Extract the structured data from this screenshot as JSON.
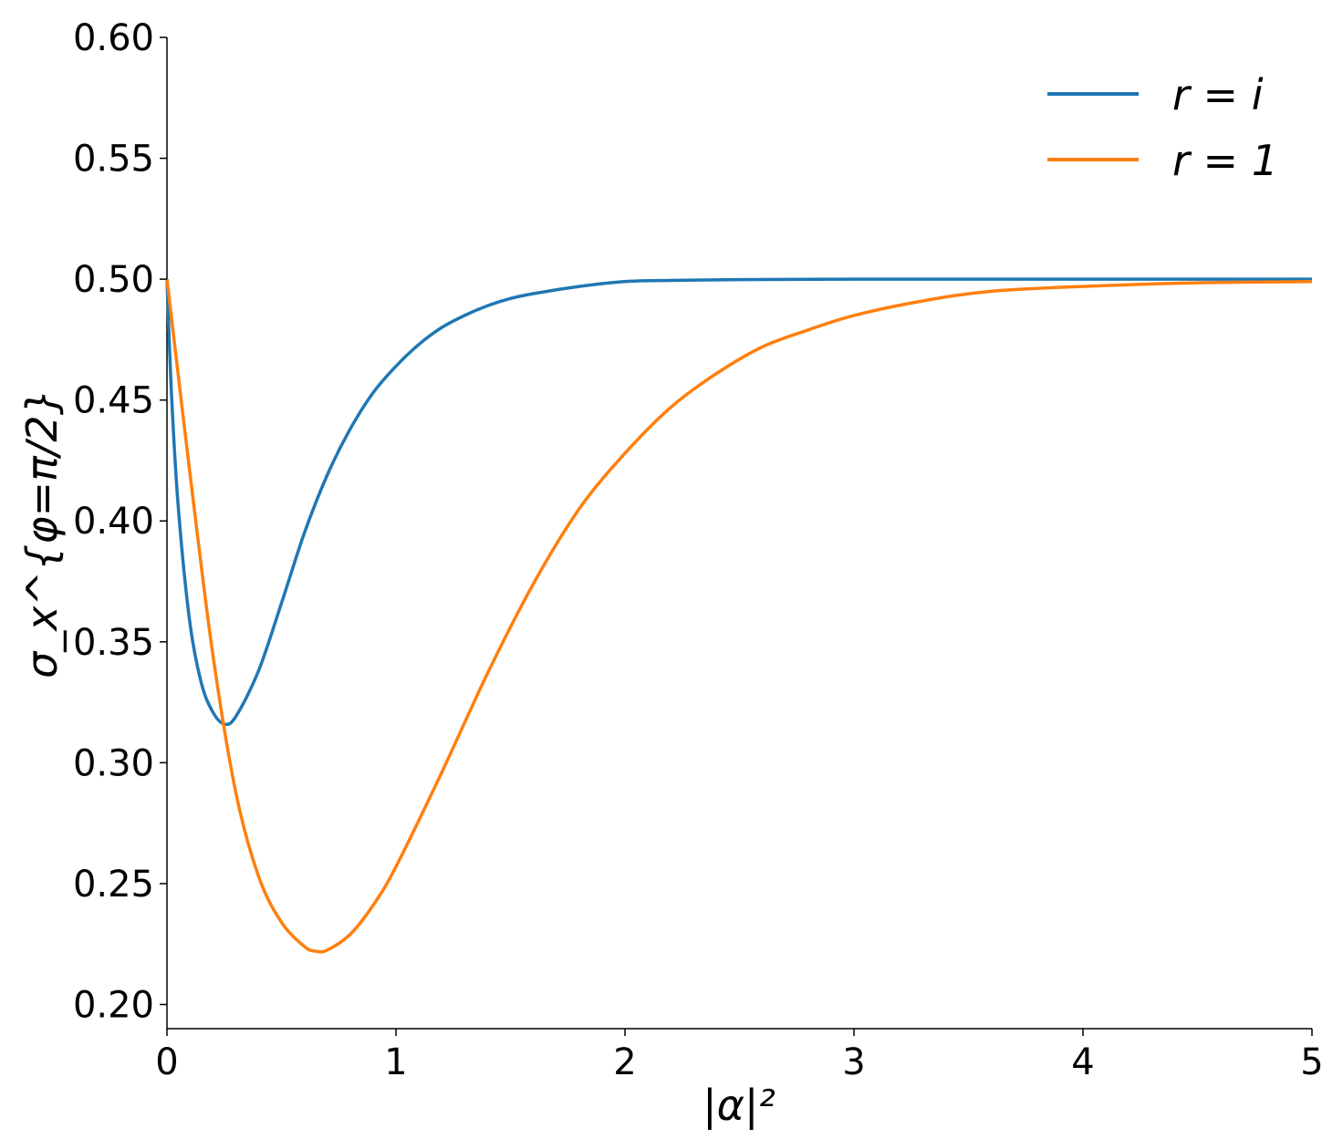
{
  "chart_data": {
    "type": "line",
    "title": "",
    "xlabel": "|α|²",
    "ylabel": "σ_x^{φ=π/2}",
    "xlim": [
      0,
      5
    ],
    "ylim": [
      0.19,
      0.6
    ],
    "xticks": [
      0,
      1,
      2,
      3,
      4,
      5
    ],
    "xtick_labels": [
      "0",
      "1",
      "2",
      "3",
      "4",
      "5"
    ],
    "yticks": [
      0.2,
      0.25,
      0.3,
      0.35,
      0.4,
      0.45,
      0.5,
      0.55,
      0.6
    ],
    "ytick_labels": [
      "0.20",
      "0.25",
      "0.30",
      "0.35",
      "0.40",
      "0.45",
      "0.50",
      "0.55",
      "0.60"
    ],
    "grid": false,
    "legend_position": "top-right",
    "series": [
      {
        "name": "r = i",
        "color": "#1f77b4",
        "x": [
          0,
          0.02,
          0.05,
          0.1,
          0.15,
          0.2,
          0.25,
          0.3,
          0.4,
          0.5,
          0.6,
          0.7,
          0.8,
          0.9,
          1.0,
          1.1,
          1.2,
          1.3,
          1.4,
          1.5,
          1.6,
          1.8,
          2.0,
          2.2,
          2.5,
          3.0,
          3.5,
          4.0,
          4.5,
          5.0
        ],
        "y": [
          0.5,
          0.452,
          0.405,
          0.358,
          0.333,
          0.321,
          0.316,
          0.319,
          0.338,
          0.366,
          0.395,
          0.419,
          0.438,
          0.453,
          0.464,
          0.473,
          0.48,
          0.485,
          0.489,
          0.492,
          0.494,
          0.497,
          0.499,
          0.4995,
          0.4998,
          0.5,
          0.5,
          0.5,
          0.5,
          0.5
        ]
      },
      {
        "name": "r = 1",
        "color": "#ff7f0e",
        "x": [
          0,
          0.1,
          0.2,
          0.3,
          0.4,
          0.5,
          0.6,
          0.65,
          0.7,
          0.8,
          0.9,
          1.0,
          1.2,
          1.4,
          1.6,
          1.8,
          2.0,
          2.2,
          2.4,
          2.6,
          2.8,
          3.0,
          3.3,
          3.6,
          4.0,
          4.5,
          5.0
        ],
        "y": [
          0.5,
          0.42,
          0.345,
          0.288,
          0.253,
          0.234,
          0.224,
          0.222,
          0.2225,
          0.229,
          0.241,
          0.257,
          0.296,
          0.337,
          0.374,
          0.405,
          0.428,
          0.447,
          0.461,
          0.472,
          0.479,
          0.485,
          0.491,
          0.495,
          0.497,
          0.4985,
          0.499
        ]
      }
    ],
    "legend": [
      {
        "label": "r = i",
        "color": "#1f77b4"
      },
      {
        "label": "r = 1",
        "color": "#ff7f0e"
      }
    ]
  }
}
